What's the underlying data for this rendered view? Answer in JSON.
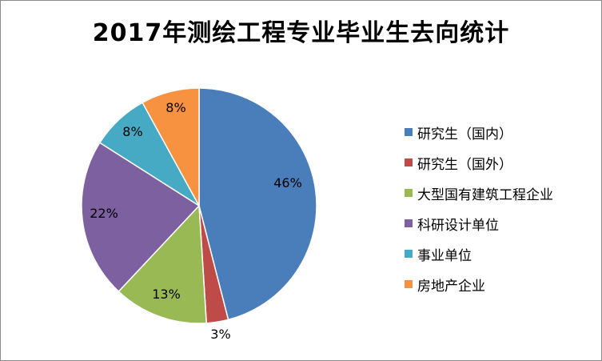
{
  "chart_data": {
    "type": "pie",
    "title": "2017年测绘工程专业毕业生去向统计",
    "slices": [
      {
        "name": "研究生（国内）",
        "value": 46,
        "label": "46%",
        "color": "#4a7ebb"
      },
      {
        "name": "研究生（国外）",
        "value": 3,
        "label": "3%",
        "color": "#be4b48"
      },
      {
        "name": "大型国有建筑工程企业",
        "value": 13,
        "label": "13%",
        "color": "#98b954"
      },
      {
        "name": "科研设计单位",
        "value": 22,
        "label": "22%",
        "color": "#7d60a0"
      },
      {
        "name": "事业单位",
        "value": 8,
        "label": "8%",
        "color": "#46aac5"
      },
      {
        "name": "房地产企业",
        "value": 8,
        "label": "8%",
        "color": "#f69240"
      }
    ],
    "legend": "right"
  }
}
